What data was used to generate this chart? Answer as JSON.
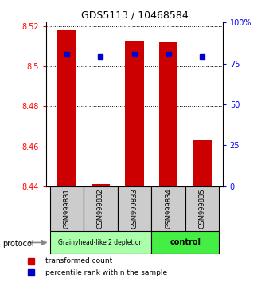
{
  "title": "GDS5113 / 10468584",
  "samples": [
    "GSM999831",
    "GSM999832",
    "GSM999833",
    "GSM999834",
    "GSM999835"
  ],
  "bar_bottom": [
    8.44,
    8.44,
    8.44,
    8.44,
    8.44
  ],
  "bar_top": [
    8.518,
    8.441,
    8.513,
    8.512,
    8.463
  ],
  "percentile_left_y": [
    8.506,
    8.505,
    8.506,
    8.506,
    8.505
  ],
  "ylim": [
    8.44,
    8.522
  ],
  "yticks_left": [
    8.44,
    8.46,
    8.48,
    8.5,
    8.52
  ],
  "yticks_right": [
    0,
    25,
    50,
    75,
    100
  ],
  "bar_color": "#cc0000",
  "dot_color": "#0000cc",
  "group1_label": "Grainyhead-like 2 depletion",
  "group2_label": "control",
  "group1_color": "#aaffaa",
  "group2_color": "#44ee44",
  "protocol_label": "protocol",
  "legend_red": "transformed count",
  "legend_blue": "percentile rank within the sample",
  "group1_count": 3,
  "group2_count": 2,
  "sample_box_color": "#cccccc",
  "bar_width": 0.55
}
